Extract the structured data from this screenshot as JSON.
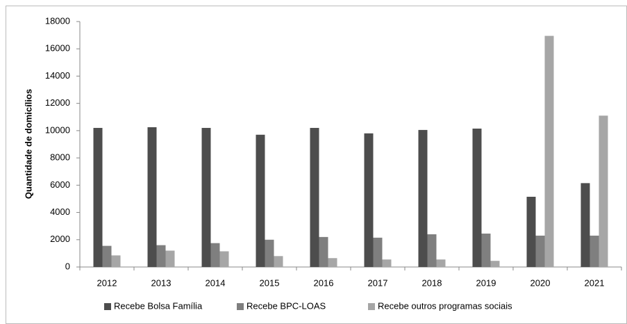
{
  "chart_data": {
    "type": "bar",
    "y_label": "Quantidade de domicílios",
    "categories": [
      "2012",
      "2013",
      "2014",
      "2015",
      "2016",
      "2017",
      "2018",
      "2019",
      "2020",
      "2021"
    ],
    "series": [
      {
        "name": "Recebe Bolsa Família",
        "color": "#4d4d4d",
        "values": [
          10200,
          10250,
          10200,
          9700,
          10200,
          9800,
          10050,
          10150,
          5150,
          6150
        ]
      },
      {
        "name": "Recebe BPC-LOAS",
        "color": "#7f7f7f",
        "values": [
          1550,
          1600,
          1750,
          2000,
          2200,
          2150,
          2400,
          2450,
          2300,
          2300
        ]
      },
      {
        "name": "Recebe outros programas sociais",
        "color": "#a6a6a6",
        "values": [
          850,
          1200,
          1150,
          800,
          650,
          550,
          550,
          450,
          16950,
          11100
        ]
      }
    ],
    "ylim": [
      0,
      18000
    ],
    "yticks": [
      0,
      2000,
      4000,
      6000,
      8000,
      10000,
      12000,
      14000,
      16000,
      18000
    ],
    "grid": false,
    "legend": "bottom"
  }
}
